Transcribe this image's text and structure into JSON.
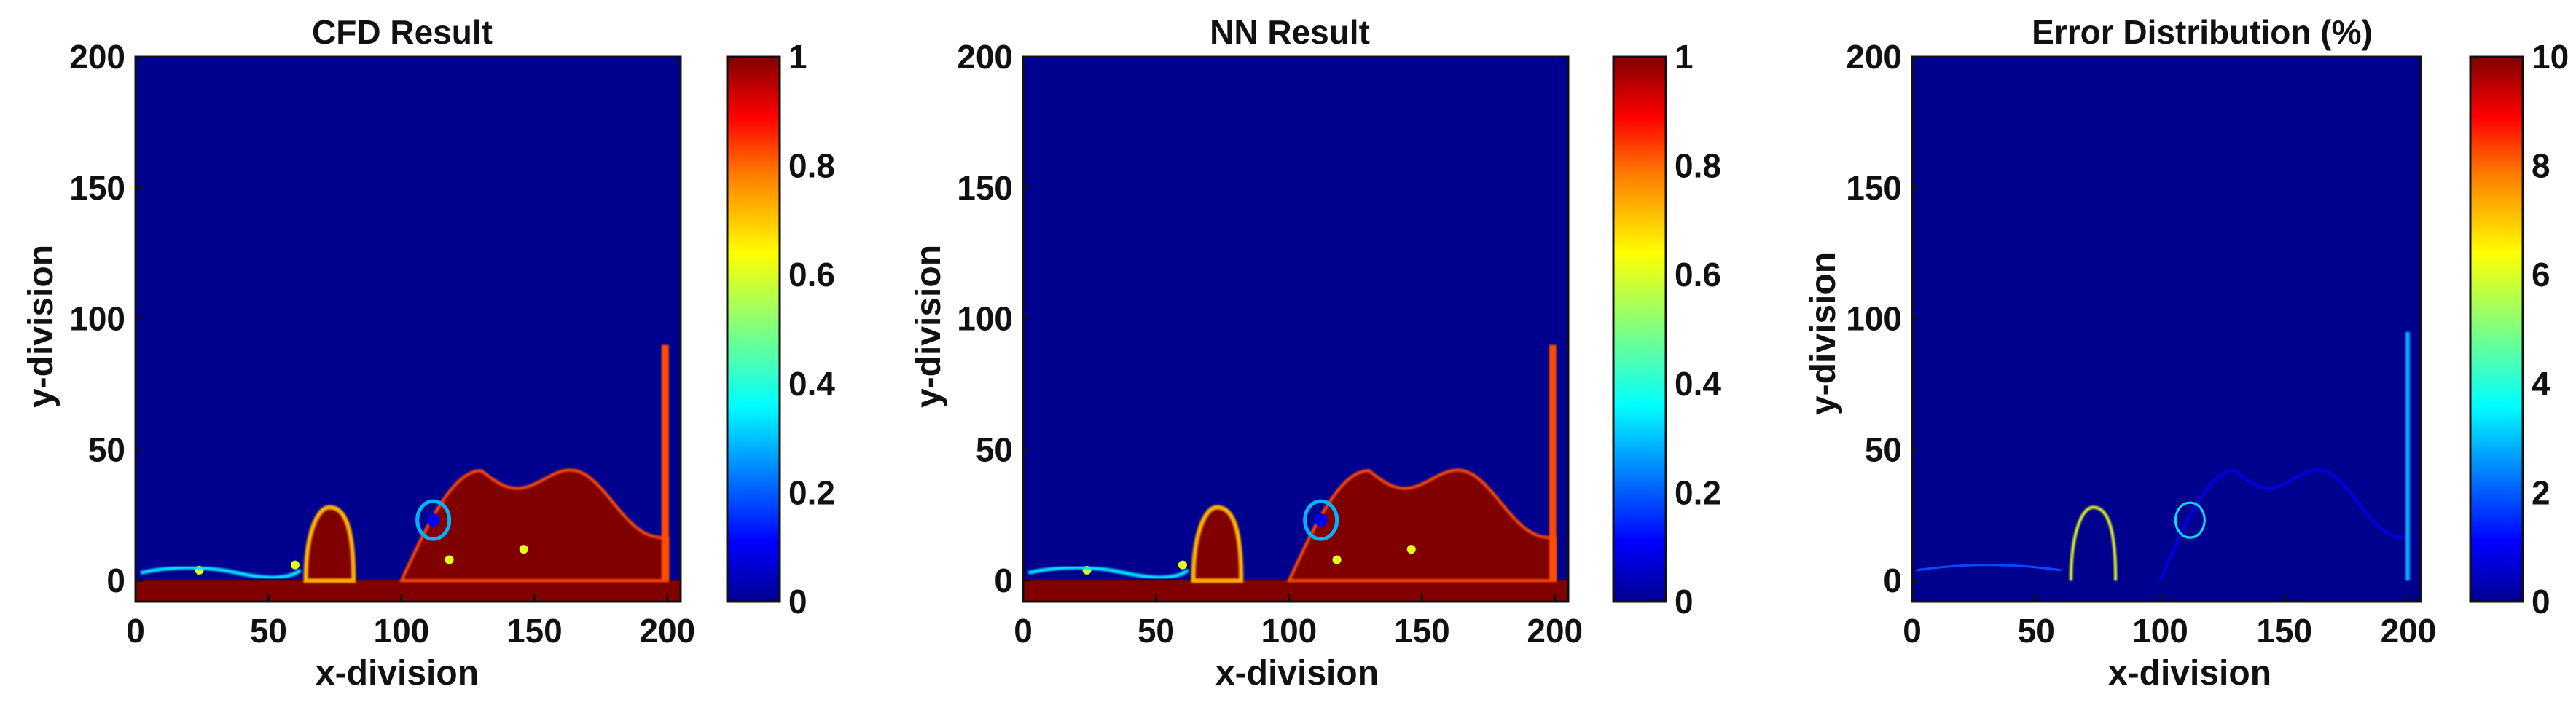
{
  "colors": {
    "low": "#00008b",
    "high": "#8b0000",
    "jet": [
      "#00008f",
      "#0000ff",
      "#0080ff",
      "#00ffff",
      "#80ff80",
      "#ffff00",
      "#ff8000",
      "#ff0000",
      "#800000"
    ]
  },
  "chart_data": [
    {
      "type": "heatmap",
      "title": "CFD Result",
      "xlabel": "x-division",
      "ylabel": "y-division",
      "xlim": [
        0,
        205
      ],
      "ylim": [
        -8,
        200
      ],
      "xticks": [
        "0",
        "50",
        "100",
        "150",
        "200"
      ],
      "yticks": [
        "0",
        "50",
        "100",
        "150",
        "200"
      ],
      "colorbar": {
        "range": [
          0,
          1
        ],
        "ticks": [
          "0",
          "0.2",
          "0.4",
          "0.6",
          "0.8",
          "1"
        ]
      },
      "background_value": 0,
      "water_region": {
        "value": 1,
        "pool_top_y": 0,
        "mound": {
          "x_start": 100,
          "peak_x": 130,
          "x_end": 200,
          "peak_y": 42
        },
        "column": {
          "x_start": 64,
          "x_end": 82,
          "top_y": 28
        }
      },
      "interface_band_value_range": [
        0.1,
        0.9
      ]
    },
    {
      "type": "heatmap",
      "title": "NN Result",
      "xlabel": "x-division",
      "ylabel": "y-division",
      "xlim": [
        0,
        205
      ],
      "ylim": [
        -8,
        200
      ],
      "xticks": [
        "0",
        "50",
        "100",
        "150",
        "200"
      ],
      "yticks": [
        "0",
        "50",
        "100",
        "150",
        "200"
      ],
      "colorbar": {
        "range": [
          0,
          1
        ],
        "ticks": [
          "0",
          "0.2",
          "0.4",
          "0.6",
          "0.8",
          "1"
        ]
      },
      "background_value": 0,
      "water_region": {
        "value": 1,
        "pool_top_y": 0,
        "mound": {
          "x_start": 100,
          "peak_x": 130,
          "x_end": 200,
          "peak_y": 42
        },
        "column": {
          "x_start": 64,
          "x_end": 82,
          "top_y": 28
        }
      },
      "interface_band_value_range": [
        0.1,
        0.9
      ]
    },
    {
      "type": "heatmap",
      "title": "Error Distribution (%)",
      "xlabel": "x-division",
      "ylabel": "y-division",
      "xlim": [
        0,
        205
      ],
      "ylim": [
        -8,
        200
      ],
      "xticks": [
        "0",
        "50",
        "100",
        "150",
        "200"
      ],
      "yticks": [
        "0",
        "50",
        "100",
        "150",
        "200"
      ],
      "colorbar": {
        "range": [
          0,
          10
        ],
        "ticks": [
          "0",
          "2",
          "4",
          "6",
          "8",
          "10"
        ]
      },
      "background_value": 0,
      "error_along_interface_range": [
        0.5,
        6
      ]
    }
  ]
}
